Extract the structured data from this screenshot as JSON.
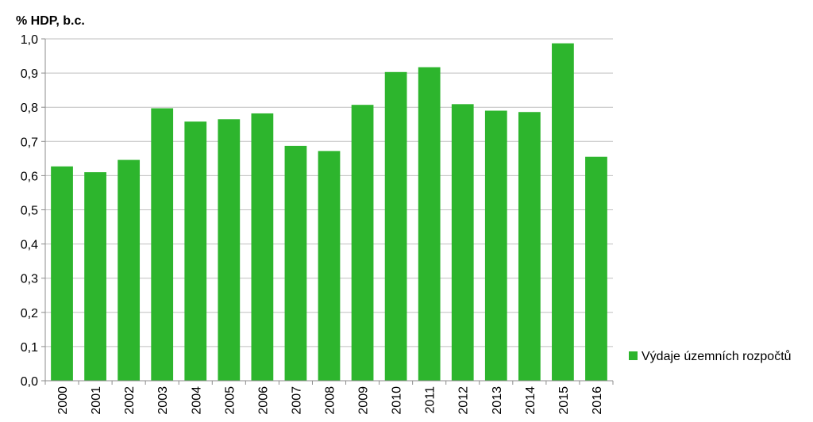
{
  "chart_data": {
    "type": "bar",
    "ylabel": "% HDP, b.c.",
    "categories": [
      "2000",
      "2001",
      "2002",
      "2003",
      "2004",
      "2005",
      "2006",
      "2007",
      "2008",
      "2009",
      "2010",
      "2011",
      "2012",
      "2013",
      "2014",
      "2015",
      "2016"
    ],
    "series": [
      {
        "name": "Výdaje územních rozpočtů",
        "color": "#2db52d",
        "values": [
          0.627,
          0.61,
          0.646,
          0.797,
          0.758,
          0.765,
          0.782,
          0.687,
          0.672,
          0.807,
          0.903,
          0.917,
          0.809,
          0.79,
          0.786,
          0.987,
          0.655
        ]
      }
    ],
    "ylim": [
      0,
      1.0
    ],
    "yticks": [
      "0,0",
      "0,1",
      "0,2",
      "0,3",
      "0,4",
      "0,5",
      "0,6",
      "0,7",
      "0,8",
      "0,9",
      "1,0"
    ],
    "grid": true,
    "legend_position": "right"
  }
}
